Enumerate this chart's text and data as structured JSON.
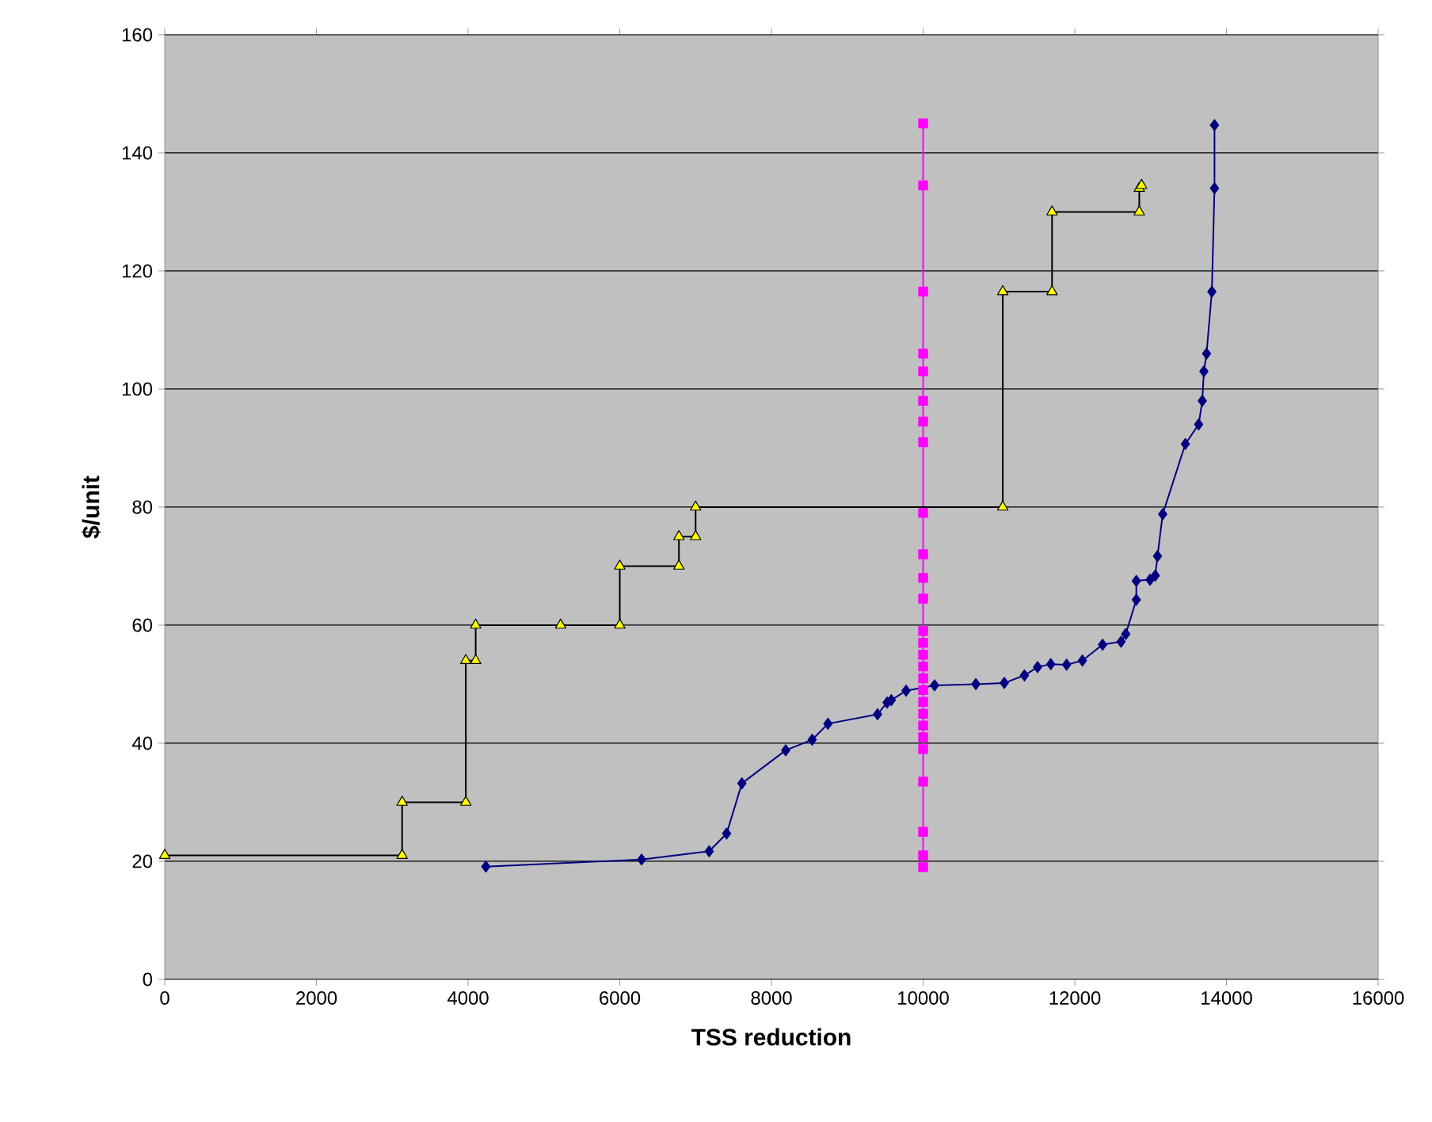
{
  "chart_data": {
    "type": "line",
    "xlabel": "TSS reduction",
    "ylabel": "$/unit",
    "xlim": [
      0,
      16000
    ],
    "ylim": [
      0,
      160
    ],
    "xticks": [
      0,
      2000,
      4000,
      6000,
      8000,
      10000,
      12000,
      14000,
      16000
    ],
    "yticks": [
      0,
      20,
      40,
      60,
      80,
      100,
      120,
      140,
      160
    ],
    "grid": "y",
    "line_style": "solid",
    "series": [
      {
        "color": "#000080",
        "marker": "diamond",
        "x": [
          4234,
          6287,
          7179,
          7409,
          7610,
          8188,
          8537,
          8745,
          9399,
          9525,
          9580,
          9775,
          10151,
          10695,
          11070,
          11336,
          11509,
          11683,
          11892,
          12100,
          12366,
          12610,
          12672,
          12811,
          12811,
          12992,
          13061,
          13090,
          13159,
          13458,
          13633,
          13681,
          13702,
          13737,
          13807,
          13842,
          13842
        ],
        "values": [
          19.1,
          20.3,
          21.7,
          24.7,
          33.2,
          38.8,
          40.6,
          43.3,
          44.9,
          46.9,
          47.3,
          48.9,
          49.8,
          50,
          50.2,
          51.5,
          52.9,
          53.4,
          53.3,
          54,
          56.7,
          57.2,
          58.5,
          64.3,
          67.5,
          67.7,
          68.4,
          71.7,
          78.8,
          90.7,
          94,
          98,
          103,
          106,
          116.5,
          134,
          144.7
        ]
      },
      {
        "color": "#ff00ff",
        "marker": "square",
        "x": [
          10000,
          10000,
          10000,
          10000,
          10000,
          10000,
          10000,
          10000,
          10000,
          10000,
          10000,
          10000,
          10000,
          10000,
          10000,
          10000,
          10000,
          10000,
          10000,
          10000,
          10000,
          10000,
          10000,
          10000,
          10000,
          10000,
          10000
        ],
        "values": [
          145,
          134.5,
          116.5,
          106,
          103,
          98,
          94.5,
          91,
          79,
          72,
          68,
          64.5,
          59,
          57,
          55,
          53,
          51,
          49,
          47,
          45,
          43,
          41,
          39,
          33.5,
          25,
          21,
          19
        ]
      },
      {
        "color": "#ffff00",
        "marker": "triangle",
        "x": [
          0,
          3130,
          3130,
          3970,
          3970,
          4100,
          4100,
          5220,
          6000,
          6000,
          6780,
          6780,
          7000,
          7000,
          11050,
          11050,
          11700,
          11700,
          12850,
          12850,
          12880
        ],
        "values": [
          21,
          21,
          30,
          30,
          54,
          54,
          60,
          60,
          60,
          70,
          70,
          75,
          75,
          80,
          80,
          116.5,
          116.5,
          130,
          130,
          134,
          134.5
        ]
      }
    ]
  }
}
